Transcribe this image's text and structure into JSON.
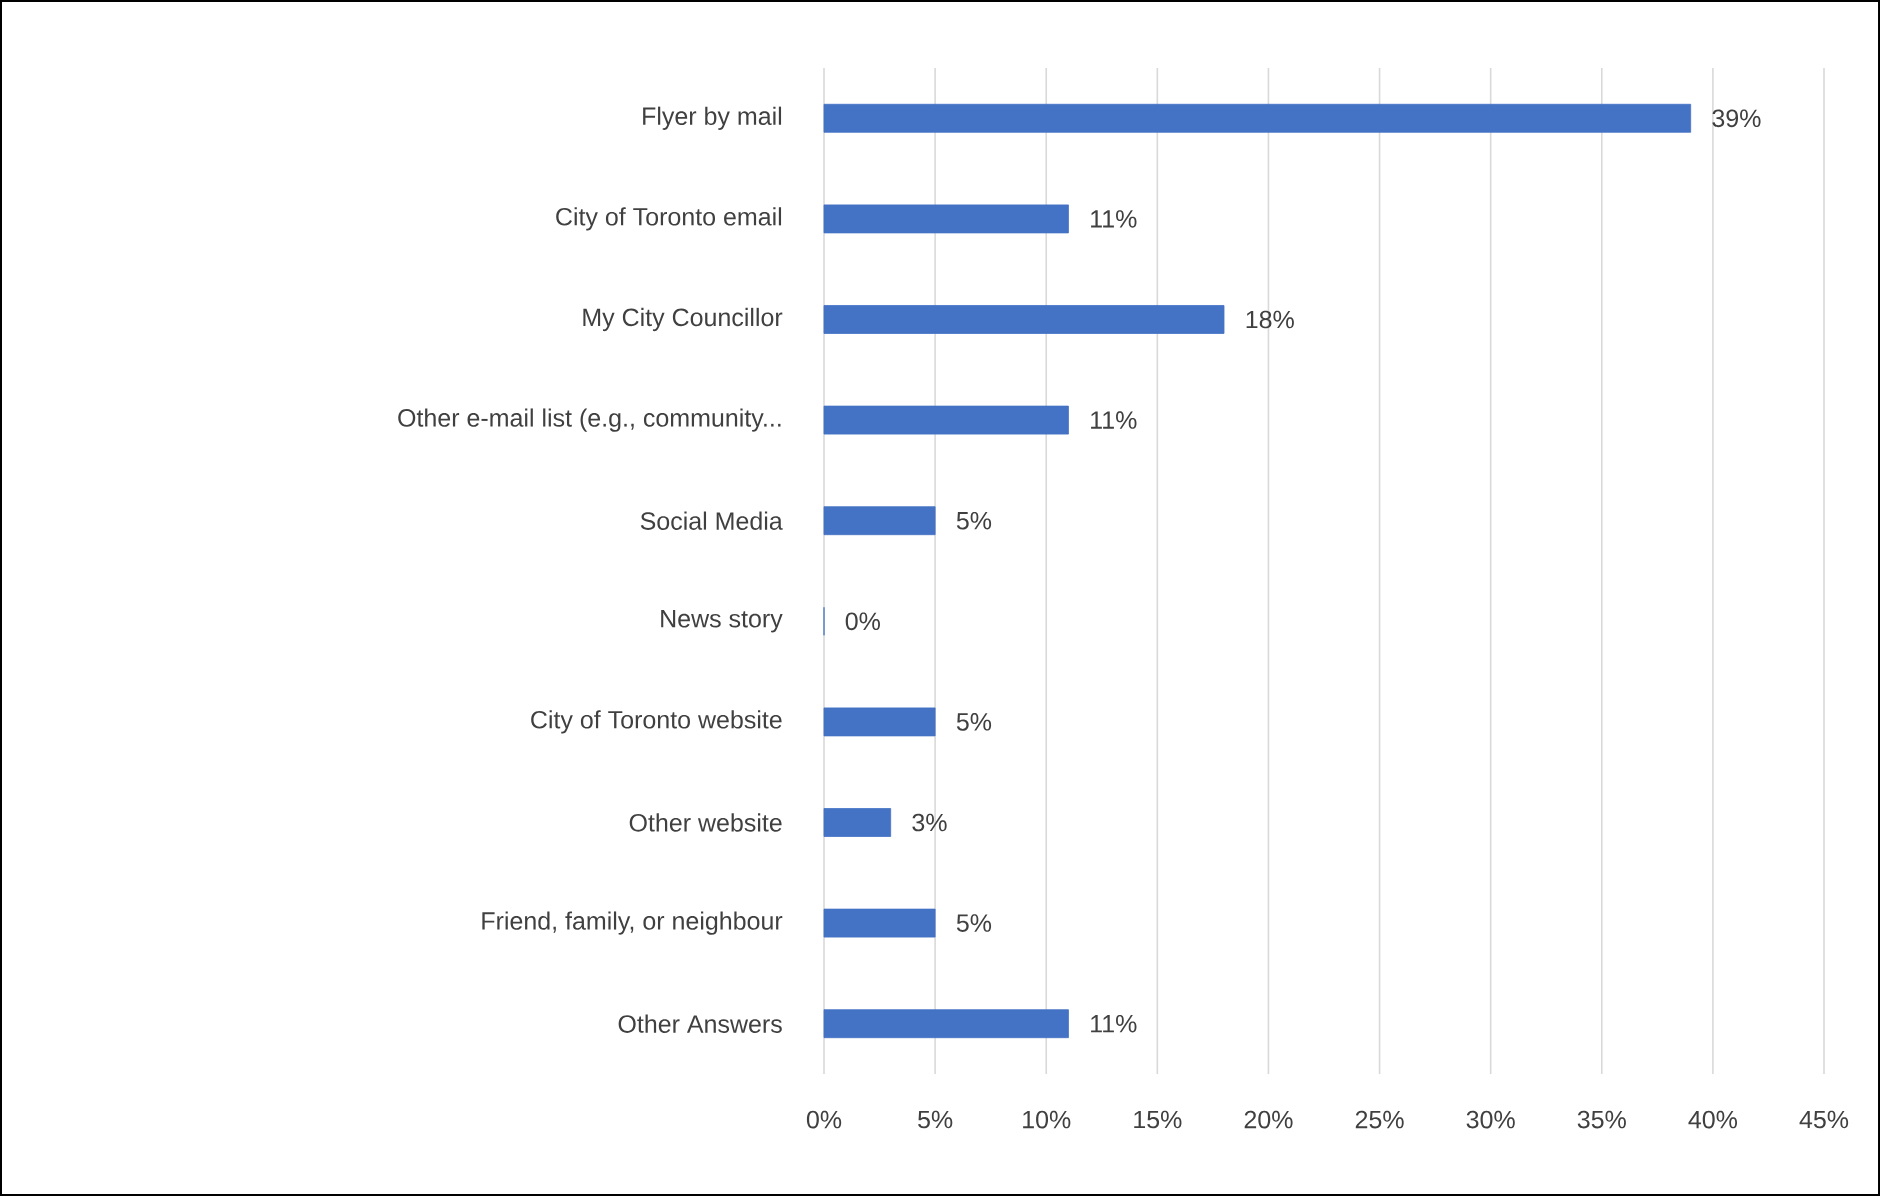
{
  "chart_data": {
    "type": "bar",
    "orientation": "horizontal",
    "categories": [
      "Flyer by mail",
      "City of Toronto email",
      "My City Councillor",
      "Other e-mail list (e.g., community...",
      "Social Media",
      "News story",
      "City of Toronto website",
      "Other website",
      "Friend, family, or neighbour",
      "Other Answers"
    ],
    "values": [
      39,
      11,
      18,
      11,
      5,
      0,
      5,
      3,
      5,
      11
    ],
    "value_labels": [
      "39%",
      "11%",
      "18%",
      "11%",
      "5%",
      "0%",
      "5%",
      "3%",
      "5%",
      "11%"
    ],
    "color": "#4472c4",
    "xlim": [
      0,
      45
    ],
    "xticks": [
      {
        "value": 0,
        "label": "0%"
      },
      {
        "value": 5,
        "label": "5%"
      },
      {
        "value": 10,
        "label": "10%"
      },
      {
        "value": 15,
        "label": "15%"
      },
      {
        "value": 20,
        "label": "20%"
      },
      {
        "value": 25,
        "label": "25%"
      },
      {
        "value": 30,
        "label": "30%"
      },
      {
        "value": 35,
        "label": "35%"
      },
      {
        "value": 40,
        "label": "40%"
      },
      {
        "value": 45,
        "label": "45%"
      }
    ],
    "grid": "x"
  }
}
